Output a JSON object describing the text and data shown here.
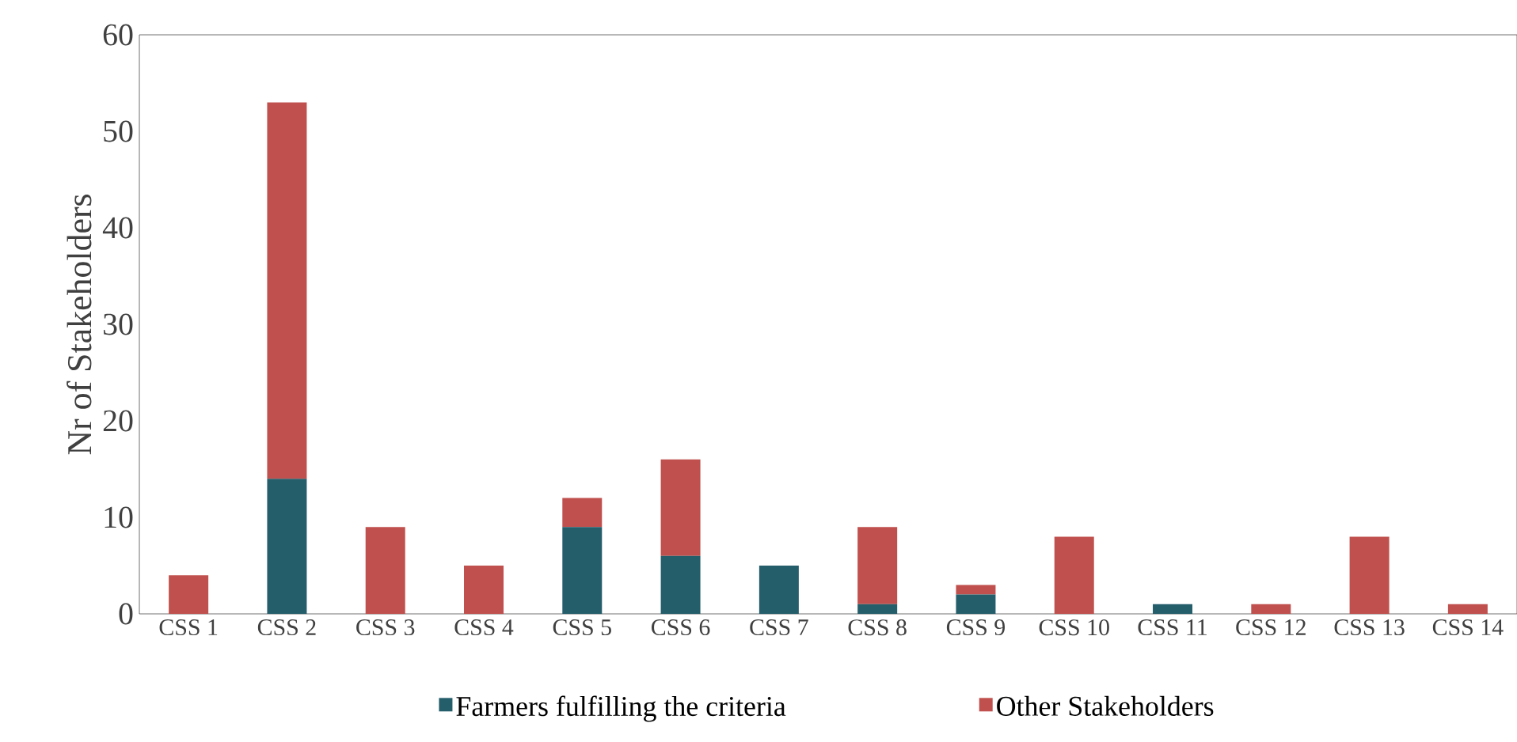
{
  "chart_data": {
    "type": "bar",
    "ylabel": "Nr of Stakeholders",
    "categories": [
      "CSS 1",
      "CSS 2",
      "CSS 3",
      "CSS 4",
      "CSS 5",
      "CSS 6",
      "CSS 7",
      "CSS 8",
      "CSS 9",
      "CSS 10",
      "CSS 11",
      "CSS 12",
      "CSS 13",
      "CSS 14"
    ],
    "series": [
      {
        "name": "Farmers fulfilling the criteria",
        "color": "#255e6b",
        "values": [
          0,
          14,
          0,
          0,
          9,
          6,
          5,
          1,
          2,
          0,
          1,
          0,
          0,
          0
        ]
      },
      {
        "name": "Other Stakeholders",
        "color": "#c0504d",
        "values": [
          4,
          39,
          9,
          5,
          3,
          10,
          0,
          8,
          1,
          8,
          0,
          1,
          8,
          1
        ]
      }
    ],
    "stacked": true,
    "ylim": [
      0,
      60
    ],
    "yticks": [
      0,
      10,
      20,
      30,
      40,
      50,
      60
    ],
    "legend": "bottom"
  }
}
